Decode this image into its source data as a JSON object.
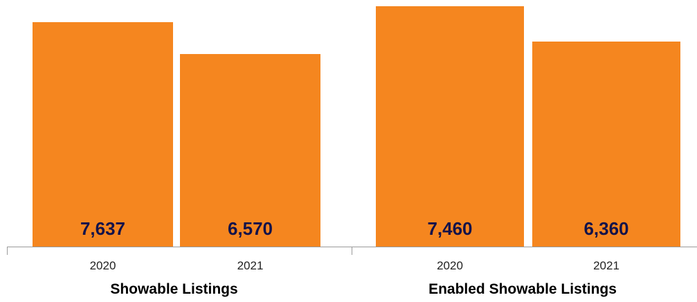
{
  "style": {
    "bar_color": "#F5861F",
    "value_label_color": "#13134A"
  },
  "chart_data": [
    {
      "type": "bar",
      "title": "Showable Listings",
      "categories": [
        "2020",
        "2021"
      ],
      "values": [
        7637,
        6570
      ],
      "value_labels": [
        "7,637",
        "6,570"
      ],
      "ylim": [
        0,
        8400
      ],
      "grid": false,
      "legend": "none"
    },
    {
      "type": "bar",
      "title": "Enabled Showable Listings",
      "categories": [
        "2020",
        "2021"
      ],
      "values": [
        7460,
        6360
      ],
      "value_labels": [
        "7,460",
        "6,360"
      ],
      "ylim": [
        0,
        7660
      ],
      "grid": false,
      "legend": "none"
    }
  ]
}
